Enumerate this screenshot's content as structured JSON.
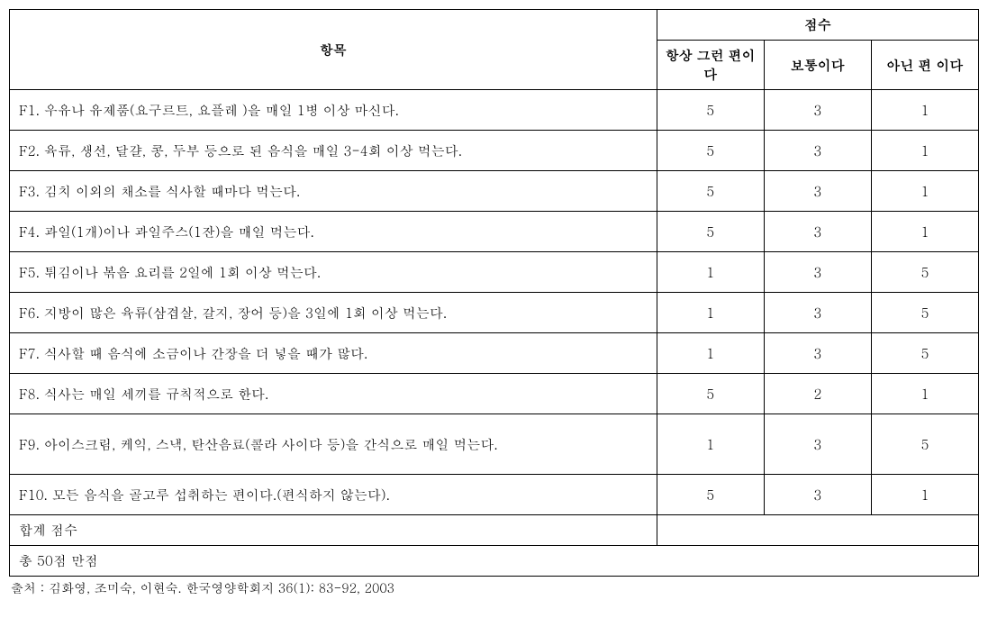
{
  "headers": {
    "item": "항목",
    "score_group": "점수",
    "score1": "항상 그런 편이다",
    "score2": "보통이다",
    "score3": "아닌 편 이다"
  },
  "rows": [
    {
      "label": "F1. 우유나 유제품(요구르트, 요플레 )을 매일 1병 이상 마신다.",
      "s1": "5",
      "s2": "3",
      "s3": "1"
    },
    {
      "label": "F2. 육류, 생선, 달걀, 콩, 두부 등으로 된 음식을 매일 3-4회 이상 먹는다.",
      "s1": "5",
      "s2": "3",
      "s3": "1"
    },
    {
      "label": "F3. 김치 이외의 채소를 식사할 때마다 먹는다.",
      "s1": "5",
      "s2": "3",
      "s3": "1"
    },
    {
      "label": "F4. 과일(1개)이나 과일주스(1잔)을 매일 먹는다.",
      "s1": "5",
      "s2": "3",
      "s3": "1"
    },
    {
      "label": "F5. 튀김이나 볶음 요리를 2일에 1회 이상 먹는다.",
      "s1": "1",
      "s2": "3",
      "s3": "5"
    },
    {
      "label": "F6. 지방이 많은 육류(삼겹살, 갈지, 장어 등)을 3일에 1회 이상 먹는다.",
      "s1": "1",
      "s2": "3",
      "s3": "5"
    },
    {
      "label": "F7. 식사할 때 음식에 소금이나 간장을 더 넣을 때가 많다.",
      "s1": "1",
      "s2": "3",
      "s3": "5"
    },
    {
      "label": "F8. 식사는 매일 세끼를 규칙적으로 한다.",
      "s1": "5",
      "s2": "2",
      "s3": "1"
    },
    {
      "label": "F9. 아이스크림, 케익, 스낵, 탄산음료(콜라 사이다 등)을 간식으로 매일 먹는다.",
      "s1": "1",
      "s2": "3",
      "s3": "5",
      "tall": true
    },
    {
      "label": "F10. 모든 음식을 골고루 섭취하는 편이다.(편식하지 않는다).",
      "s1": "5",
      "s2": "3",
      "s3": "1"
    }
  ],
  "footer": {
    "total_label": "합계 점수",
    "max_label": "총 50점 만점"
  },
  "source": "출처 : 김화영, 조미숙, 이현숙.   한국영양학회지 36(1): 83-92, 2003"
}
